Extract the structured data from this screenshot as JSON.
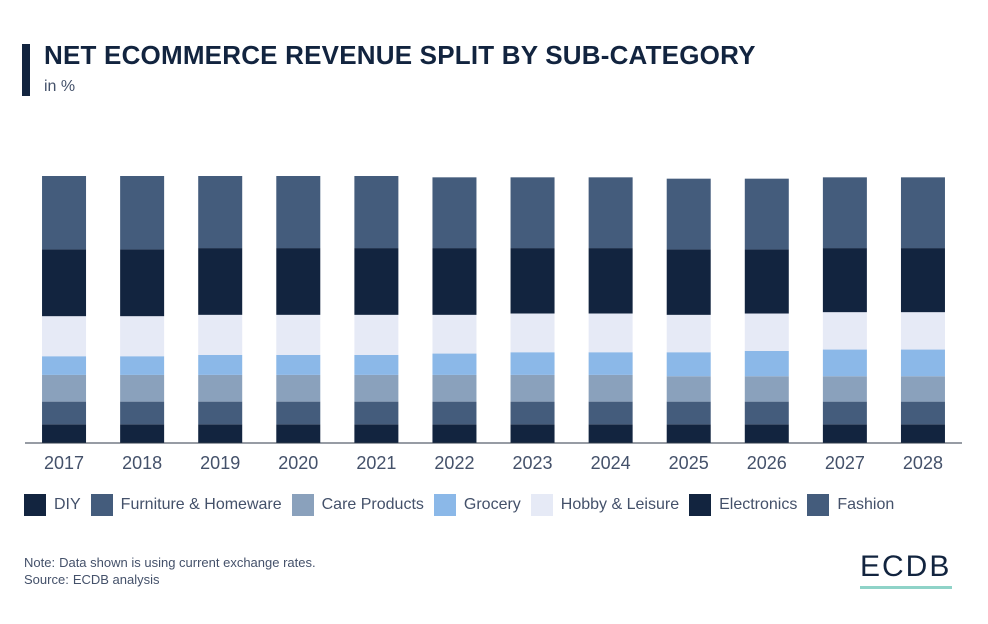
{
  "title": "NET ECOMMERCE REVENUE SPLIT BY SUB-CATEGORY",
  "subtitle": "in %",
  "chart_data": {
    "type": "bar",
    "stacked": true,
    "categories": [
      "2017",
      "2018",
      "2019",
      "2020",
      "2021",
      "2022",
      "2023",
      "2024",
      "2025",
      "2026",
      "2027",
      "2028"
    ],
    "ylim": [
      0,
      100
    ],
    "grid": false,
    "legend_position": "bottom",
    "series": [
      {
        "name": "DIY",
        "color": "#12243f",
        "values": [
          7,
          7,
          7,
          7,
          7,
          7,
          7,
          7,
          7,
          7,
          7,
          7
        ]
      },
      {
        "name": "Furniture & Homeware",
        "color": "#445c7c",
        "values": [
          8.5,
          8.5,
          8.5,
          8.5,
          8.5,
          8.5,
          8.5,
          8.5,
          8.5,
          8.5,
          8.5,
          8.5
        ]
      },
      {
        "name": "Care Products",
        "color": "#8aa1bc",
        "values": [
          10,
          10,
          10,
          10,
          10,
          10,
          10,
          10,
          9.5,
          9.5,
          9.5,
          9.5
        ]
      },
      {
        "name": "Grocery",
        "color": "#8bb8e8",
        "values": [
          7,
          7,
          7.5,
          7.5,
          7.5,
          8,
          8.5,
          8.5,
          9,
          9.5,
          10,
          10
        ]
      },
      {
        "name": "Hobby & Leisure",
        "color": "#e6eaf6",
        "values": [
          15,
          15,
          15,
          15,
          15,
          14.5,
          14.5,
          14.5,
          14,
          14,
          14,
          14
        ]
      },
      {
        "name": "Electronics",
        "color": "#12243f",
        "values": [
          25,
          25,
          25,
          25,
          25,
          25,
          24.5,
          24.5,
          24.5,
          24,
          24,
          24
        ]
      },
      {
        "name": "Fashion",
        "color": "#445c7c",
        "values": [
          27.5,
          27.5,
          27,
          27,
          27,
          26.5,
          26.5,
          26.5,
          26.5,
          26.5,
          26.5,
          26.5
        ]
      }
    ]
  },
  "note": {
    "label": "Note:",
    "text": "Data shown is using current exchange rates."
  },
  "source": {
    "label": "Source:",
    "text": "ECDB analysis"
  },
  "logo": "ECDB"
}
